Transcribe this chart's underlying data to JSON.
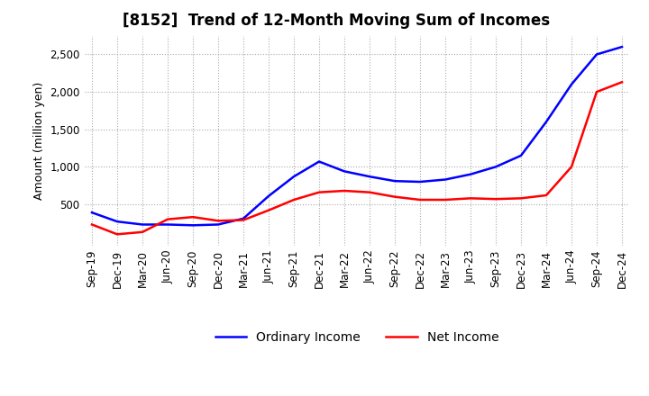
{
  "title": "[8152]  Trend of 12-Month Moving Sum of Incomes",
  "ylabel": "Amount (million yen)",
  "ylim": [
    -50,
    2750
  ],
  "yticks": [
    500,
    1000,
    1500,
    2000,
    2500
  ],
  "background_color": "#ffffff",
  "grid_color": "#aaaaaa",
  "x_labels": [
    "Sep-19",
    "Dec-19",
    "Mar-20",
    "Jun-20",
    "Sep-20",
    "Dec-20",
    "Mar-21",
    "Jun-21",
    "Sep-21",
    "Dec-21",
    "Mar-22",
    "Jun-22",
    "Sep-22",
    "Dec-22",
    "Mar-23",
    "Jun-23",
    "Sep-23",
    "Dec-23",
    "Mar-24",
    "Jun-24",
    "Sep-24",
    "Dec-24"
  ],
  "ordinary_income": [
    390,
    270,
    230,
    230,
    220,
    230,
    310,
    610,
    870,
    1070,
    940,
    870,
    810,
    800,
    830,
    900,
    1000,
    1150,
    1600,
    2100,
    2500,
    2600
  ],
  "net_income": [
    230,
    100,
    130,
    300,
    330,
    280,
    290,
    420,
    560,
    660,
    680,
    660,
    600,
    560,
    560,
    580,
    570,
    580,
    620,
    1000,
    2000,
    2130
  ],
  "ordinary_color": "#0000ff",
  "net_color": "#ff0000",
  "line_width": 1.8,
  "title_fontsize": 12,
  "label_fontsize": 9,
  "tick_fontsize": 8.5,
  "legend_fontsize": 10
}
